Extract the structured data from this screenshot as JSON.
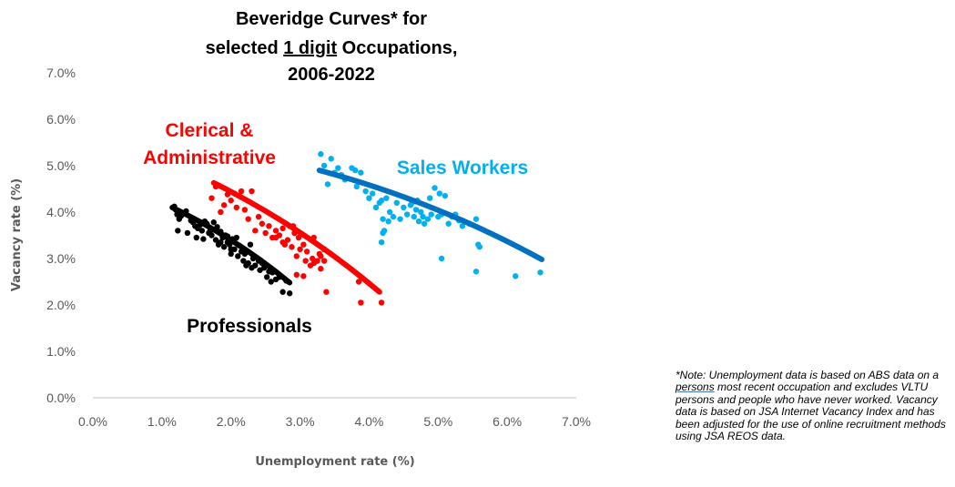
{
  "chart_data": {
    "type": "scatter",
    "title_lines": [
      "Beveridge Curves* for",
      "selected 1 digit Occupations,",
      "2006-2022"
    ],
    "xlabel": "Unemployment rate (%)",
    "ylabel": "Vacancy rate (%)",
    "xlim": [
      0,
      7
    ],
    "ylim": [
      0,
      7
    ],
    "x_ticks": [
      "0.0%",
      "1.0%",
      "2.0%",
      "3.0%",
      "4.0%",
      "5.0%",
      "6.0%",
      "7.0%"
    ],
    "y_ticks": [
      "0.0%",
      "1.0%",
      "2.0%",
      "3.0%",
      "4.0%",
      "5.0%",
      "6.0%",
      "7.0%"
    ],
    "grid": false,
    "legend": "inline labels",
    "series": [
      {
        "name": "Professionals",
        "color": "#000000",
        "trend": {
          "x_start": 1.15,
          "x_end": 2.85,
          "y_start": 4.1,
          "y_end": 2.48
        },
        "points": [
          [
            1.18,
            4.12
          ],
          [
            1.2,
            4.05
          ],
          [
            1.22,
            3.95
          ],
          [
            1.25,
            3.85
          ],
          [
            1.23,
            3.6
          ],
          [
            1.28,
            3.92
          ],
          [
            1.3,
            3.98
          ],
          [
            1.35,
            4.02
          ],
          [
            1.37,
            3.55
          ],
          [
            1.42,
            3.82
          ],
          [
            1.45,
            3.78
          ],
          [
            1.48,
            3.7
          ],
          [
            1.5,
            3.45
          ],
          [
            1.52,
            3.65
          ],
          [
            1.55,
            3.72
          ],
          [
            1.58,
            3.6
          ],
          [
            1.6,
            3.42
          ],
          [
            1.62,
            3.8
          ],
          [
            1.65,
            3.75
          ],
          [
            1.68,
            3.55
          ],
          [
            1.7,
            3.6
          ],
          [
            1.72,
            3.5
          ],
          [
            1.75,
            3.78
          ],
          [
            1.78,
            3.4
          ],
          [
            1.8,
            3.68
          ],
          [
            1.82,
            3.3
          ],
          [
            1.85,
            3.58
          ],
          [
            1.88,
            3.45
          ],
          [
            1.9,
            3.25
          ],
          [
            1.92,
            3.5
          ],
          [
            1.95,
            3.35
          ],
          [
            1.98,
            3.3
          ],
          [
            2.0,
            3.1
          ],
          [
            2.02,
            3.42
          ],
          [
            2.05,
            3.2
          ],
          [
            2.08,
            3.45
          ],
          [
            2.1,
            3.05
          ],
          [
            2.12,
            3.28
          ],
          [
            2.15,
            3.15
          ],
          [
            2.18,
            2.95
          ],
          [
            2.2,
            3.1
          ],
          [
            2.22,
            2.85
          ],
          [
            2.25,
            2.9
          ],
          [
            2.28,
            3.3
          ],
          [
            2.3,
            2.8
          ],
          [
            2.32,
            3.0
          ],
          [
            2.35,
            2.85
          ],
          [
            2.4,
            2.95
          ],
          [
            2.42,
            2.75
          ],
          [
            2.45,
            2.9
          ],
          [
            2.48,
            2.8
          ],
          [
            2.5,
            2.85
          ],
          [
            2.52,
            2.6
          ],
          [
            2.55,
            2.72
          ],
          [
            2.58,
            2.5
          ],
          [
            2.6,
            2.7
          ],
          [
            2.65,
            2.55
          ],
          [
            2.7,
            2.6
          ],
          [
            2.75,
            2.28
          ],
          [
            2.8,
            2.52
          ],
          [
            2.85,
            2.25
          ],
          [
            2.0,
            3.2
          ],
          [
            1.85,
            3.35
          ],
          [
            1.95,
            3.48
          ]
        ]
      },
      {
        "name": "Clerical & Administrative",
        "color": "#ff0000",
        "trend": {
          "x_start": 1.75,
          "x_end": 4.15,
          "y_start": 4.63,
          "y_end": 2.28
        },
        "points": [
          [
            1.72,
            4.3
          ],
          [
            1.78,
            4.55
          ],
          [
            1.85,
            4.0
          ],
          [
            1.9,
            4.15
          ],
          [
            1.95,
            4.38
          ],
          [
            2.0,
            4.25
          ],
          [
            2.05,
            4.4
          ],
          [
            2.08,
            4.1
          ],
          [
            2.12,
            4.35
          ],
          [
            2.15,
            4.45
          ],
          [
            2.2,
            4.05
          ],
          [
            2.25,
            3.85
          ],
          [
            2.3,
            4.45
          ],
          [
            2.35,
            3.6
          ],
          [
            2.4,
            3.9
          ],
          [
            2.45,
            3.75
          ],
          [
            2.5,
            3.55
          ],
          [
            2.55,
            3.7
          ],
          [
            2.6,
            3.45
          ],
          [
            2.65,
            3.6
          ],
          [
            2.7,
            3.5
          ],
          [
            2.75,
            3.65
          ],
          [
            2.78,
            3.3
          ],
          [
            2.82,
            3.4
          ],
          [
            2.85,
            3.7
          ],
          [
            2.88,
            3.25
          ],
          [
            2.92,
            3.55
          ],
          [
            2.95,
            3.05
          ],
          [
            2.98,
            3.45
          ],
          [
            3.0,
            3.2
          ],
          [
            3.05,
            3.3
          ],
          [
            3.08,
            2.95
          ],
          [
            3.1,
            3.15
          ],
          [
            3.15,
            2.85
          ],
          [
            3.18,
            3.0
          ],
          [
            3.2,
            3.45
          ],
          [
            3.25,
            2.95
          ],
          [
            3.28,
            3.1
          ],
          [
            3.3,
            3.05
          ],
          [
            3.35,
            2.95
          ],
          [
            2.95,
            2.65
          ],
          [
            3.05,
            2.62
          ],
          [
            3.2,
            2.9
          ],
          [
            3.35,
            3.2
          ],
          [
            3.38,
            2.28
          ],
          [
            3.3,
            2.78
          ],
          [
            3.85,
            2.5
          ],
          [
            3.88,
            2.05
          ],
          [
            4.18,
            2.05
          ],
          [
            2.65,
            3.45
          ],
          [
            2.75,
            3.35
          ],
          [
            2.9,
            3.7
          ]
        ]
      },
      {
        "name": "Sales Workers",
        "color": "#0070c0",
        "point_color": "#00b0f0",
        "trend": {
          "x_start": 3.28,
          "x_end": 6.5,
          "y_start": 4.9,
          "y_end": 2.98
        },
        "points": [
          [
            3.3,
            5.25
          ],
          [
            3.35,
            5.0
          ],
          [
            3.4,
            4.6
          ],
          [
            3.45,
            5.15
          ],
          [
            3.5,
            4.85
          ],
          [
            3.55,
            4.95
          ],
          [
            3.6,
            4.8
          ],
          [
            3.65,
            4.7
          ],
          [
            3.75,
            4.95
          ],
          [
            3.8,
            4.9
          ],
          [
            3.82,
            4.55
          ],
          [
            3.88,
            4.85
          ],
          [
            3.95,
            4.45
          ],
          [
            4.0,
            4.3
          ],
          [
            4.05,
            4.4
          ],
          [
            4.1,
            4.1
          ],
          [
            4.15,
            4.2
          ],
          [
            4.18,
            4.25
          ],
          [
            4.2,
            3.85
          ],
          [
            4.22,
            3.6
          ],
          [
            4.25,
            4.3
          ],
          [
            4.28,
            3.8
          ],
          [
            4.3,
            4.0
          ],
          [
            4.35,
            3.9
          ],
          [
            4.4,
            4.2
          ],
          [
            4.45,
            3.85
          ],
          [
            4.5,
            4.1
          ],
          [
            4.55,
            3.95
          ],
          [
            4.6,
            4.15
          ],
          [
            4.62,
            4.2
          ],
          [
            4.65,
            3.9
          ],
          [
            4.68,
            4.05
          ],
          [
            4.7,
            4.25
          ],
          [
            4.72,
            3.8
          ],
          [
            4.75,
            4.0
          ],
          [
            4.78,
            3.9
          ],
          [
            4.8,
            3.75
          ],
          [
            4.85,
            3.85
          ],
          [
            4.88,
            4.3
          ],
          [
            4.9,
            3.95
          ],
          [
            4.95,
            4.52
          ],
          [
            5.0,
            3.9
          ],
          [
            5.02,
            4.4
          ],
          [
            5.05,
            3.95
          ],
          [
            5.1,
            4.35
          ],
          [
            5.15,
            3.75
          ],
          [
            5.2,
            3.9
          ],
          [
            5.25,
            3.95
          ],
          [
            5.3,
            3.82
          ],
          [
            5.35,
            3.7
          ],
          [
            5.45,
            3.75
          ],
          [
            5.55,
            3.85
          ],
          [
            5.58,
            3.3
          ],
          [
            5.6,
            3.25
          ],
          [
            5.05,
            3.0
          ],
          [
            5.55,
            2.72
          ],
          [
            6.12,
            2.62
          ],
          [
            6.48,
            2.7
          ],
          [
            4.18,
            3.35
          ],
          [
            4.2,
            3.55
          ]
        ]
      }
    ],
    "annotations": [
      "Clerical &",
      "Administrative",
      "Sales Workers",
      "Professionals"
    ]
  },
  "note": {
    "part1": "*Note: Unemployment data is based on ABS data on a ",
    "underlined": "persons",
    "part2": " most recent occupation and excludes VLTU persons and people who have never worked. Vacancy data is based on JSA Internet Vacancy Index and has been adjusted for the use of online recruitment methods using JSA REOS data."
  }
}
